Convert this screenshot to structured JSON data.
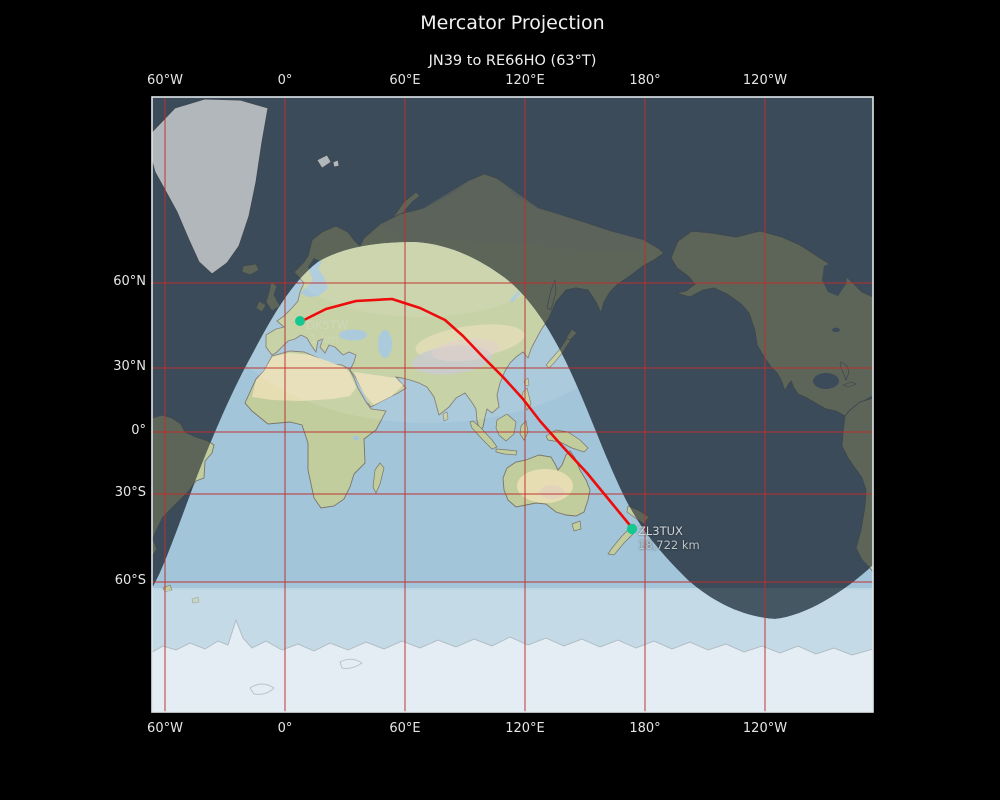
{
  "plot": {
    "title": "Mercator Projection",
    "subtitle": "JN39 to RE66HO (63°T)",
    "projection": "Mercator",
    "origin_grid": "JN39",
    "destination_grid": "RE66HO",
    "bearing": "63°T"
  },
  "axes": {
    "top": [
      "60°W",
      "0°",
      "60°E",
      "120°E",
      "180°",
      "120°W"
    ],
    "bottom": [
      "60°W",
      "0°",
      "60°E",
      "120°E",
      "180°",
      "120°W"
    ],
    "left": [
      "60°N",
      "30°N",
      "0°",
      "30°S",
      "60°S"
    ]
  },
  "route": {
    "origin": {
      "callsign": "DK5TW",
      "distance": "1 km"
    },
    "destination": {
      "callsign": "ZL3TUX",
      "distance": "18,722 km"
    }
  },
  "colors": {
    "background": "#000000",
    "grid": "#bf2e2c",
    "great_circle": "#ee0b0b",
    "marker": "#16c791",
    "frame": "#dfe6ea",
    "day_ocean": "#a2c5d9",
    "night_ocean": "#3b4b59",
    "day_land": "#c2cd9d",
    "night_land": "#5d6458",
    "ice": "#f5f8f9"
  }
}
